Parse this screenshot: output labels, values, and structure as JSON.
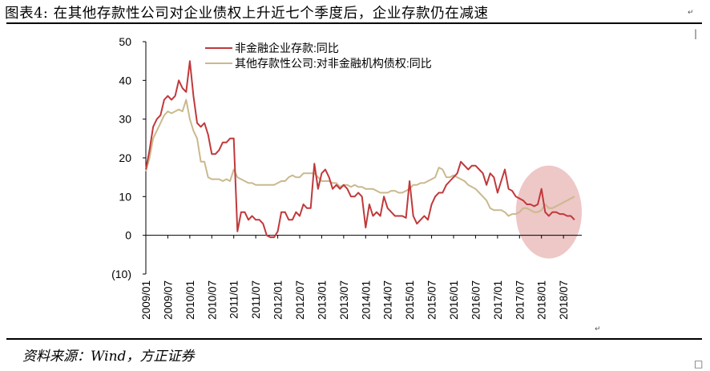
{
  "title": "图表4:  在其他存款性公司对企业债权上升近七个季度后，企业存款仍在减速",
  "source": "资料来源：Wind，方正证券",
  "chart_data": {
    "type": "line",
    "title": "",
    "xlabel": "",
    "ylabel": "",
    "ylim": [
      -10,
      50
    ],
    "y_ticks": [
      "(10)",
      "0",
      "10",
      "20",
      "30",
      "40",
      "50"
    ],
    "y_tick_values": [
      -10,
      0,
      10,
      20,
      30,
      40,
      50
    ],
    "x_ticks": [
      "2009/01",
      "2009/07",
      "2010/01",
      "2010/07",
      "2011/01",
      "2011/07",
      "2012/01",
      "2012/07",
      "2013/01",
      "2013/07",
      "2014/01",
      "2014/07",
      "2015/01",
      "2015/07",
      "2016/01",
      "2016/07",
      "2017/01",
      "2017/07",
      "2018/01",
      "2018/07"
    ],
    "grid": false,
    "legend_position": "top",
    "highlight": {
      "shape": "ellipse",
      "color": "#e8b4b4",
      "x_range": [
        "2017/06",
        "2018/12"
      ],
      "y_range": [
        -6,
        18
      ]
    },
    "series": [
      {
        "name": "非金融企业存款:同比",
        "color": "#c0393b",
        "x": [
          "2009/01",
          "2009/02",
          "2009/03",
          "2009/04",
          "2009/05",
          "2009/06",
          "2009/07",
          "2009/08",
          "2009/09",
          "2009/10",
          "2009/11",
          "2009/12",
          "2010/01",
          "2010/02",
          "2010/03",
          "2010/04",
          "2010/05",
          "2010/06",
          "2010/07",
          "2010/08",
          "2010/09",
          "2010/10",
          "2010/11",
          "2010/12",
          "2011/01",
          "2011/02",
          "2011/03",
          "2011/04",
          "2011/05",
          "2011/06",
          "2011/07",
          "2011/08",
          "2011/09",
          "2011/10",
          "2011/11",
          "2011/12",
          "2012/01",
          "2012/02",
          "2012/03",
          "2012/04",
          "2012/05",
          "2012/06",
          "2012/07",
          "2012/08",
          "2012/09",
          "2012/10",
          "2012/11",
          "2012/12",
          "2013/01",
          "2013/02",
          "2013/03",
          "2013/04",
          "2013/05",
          "2013/06",
          "2013/07",
          "2013/08",
          "2013/09",
          "2013/10",
          "2013/11",
          "2013/12",
          "2014/01",
          "2014/02",
          "2014/03",
          "2014/04",
          "2014/05",
          "2014/06",
          "2014/07",
          "2014/08",
          "2014/09",
          "2014/10",
          "2014/11",
          "2014/12",
          "2015/01",
          "2015/02",
          "2015/03",
          "2015/04",
          "2015/05",
          "2015/06",
          "2015/07",
          "2015/08",
          "2015/09",
          "2015/10",
          "2015/11",
          "2015/12",
          "2016/01",
          "2016/02",
          "2016/03",
          "2016/04",
          "2016/05",
          "2016/06",
          "2016/07",
          "2016/08",
          "2016/09",
          "2016/10",
          "2016/11",
          "2016/12",
          "2017/01",
          "2017/02",
          "2017/03",
          "2017/04",
          "2017/05",
          "2017/06",
          "2017/07",
          "2017/08",
          "2017/09",
          "2017/10",
          "2017/11",
          "2017/12",
          "2018/01",
          "2018/02",
          "2018/03",
          "2018/04",
          "2018/05",
          "2018/06",
          "2018/07",
          "2018/08",
          "2018/09",
          "2018/10"
        ],
        "values": [
          17,
          22,
          28,
          30,
          31,
          35,
          36,
          35,
          36,
          40,
          38,
          37,
          45,
          36,
          29,
          28,
          29,
          26,
          21,
          21,
          22,
          24,
          24,
          25,
          25,
          1,
          6,
          6,
          4,
          5,
          4,
          4,
          3,
          0,
          -0.5,
          -0.5,
          1,
          6,
          6,
          4,
          4,
          6,
          5,
          8,
          7,
          7,
          18.5,
          12,
          16,
          17,
          15,
          12,
          13,
          12,
          13,
          12,
          10,
          10,
          11,
          10,
          2,
          8,
          5,
          6,
          5,
          10,
          7,
          6,
          5,
          5,
          5,
          4.5,
          14,
          5,
          3,
          4,
          5,
          4,
          8,
          10,
          11,
          11,
          13,
          14,
          15,
          16,
          19,
          18,
          17,
          18,
          18,
          17,
          16,
          13,
          16,
          15,
          11,
          14,
          17,
          12,
          11.5,
          10,
          9.5,
          9,
          8,
          8,
          7.5,
          8,
          12,
          6,
          5,
          6,
          6,
          5.5,
          5.5,
          5,
          5,
          4
        ]
      },
      {
        "name": "其他存款性公司:对非金融机构债权:同比",
        "color": "#c9b98d",
        "x": [
          "2009/01",
          "2009/02",
          "2009/03",
          "2009/04",
          "2009/05",
          "2009/06",
          "2009/07",
          "2009/08",
          "2009/09",
          "2009/10",
          "2009/11",
          "2009/12",
          "2010/01",
          "2010/02",
          "2010/03",
          "2010/04",
          "2010/05",
          "2010/06",
          "2010/07",
          "2010/08",
          "2010/09",
          "2010/10",
          "2010/11",
          "2010/12",
          "2011/01",
          "2011/02",
          "2011/03",
          "2011/04",
          "2011/05",
          "2011/06",
          "2011/07",
          "2011/08",
          "2011/09",
          "2011/10",
          "2011/11",
          "2011/12",
          "2012/01",
          "2012/02",
          "2012/03",
          "2012/04",
          "2012/05",
          "2012/06",
          "2012/07",
          "2012/08",
          "2012/09",
          "2012/10",
          "2012/11",
          "2012/12",
          "2013/01",
          "2013/02",
          "2013/03",
          "2013/04",
          "2013/05",
          "2013/06",
          "2013/07",
          "2013/08",
          "2013/09",
          "2013/10",
          "2013/11",
          "2013/12",
          "2014/01",
          "2014/02",
          "2014/03",
          "2014/04",
          "2014/05",
          "2014/06",
          "2014/07",
          "2014/08",
          "2014/09",
          "2014/10",
          "2014/11",
          "2014/12",
          "2015/01",
          "2015/02",
          "2015/03",
          "2015/04",
          "2015/05",
          "2015/06",
          "2015/07",
          "2015/08",
          "2015/09",
          "2015/10",
          "2015/11",
          "2015/12",
          "2016/01",
          "2016/02",
          "2016/03",
          "2016/04",
          "2016/05",
          "2016/06",
          "2016/07",
          "2016/08",
          "2016/09",
          "2016/10",
          "2016/11",
          "2016/12",
          "2017/01",
          "2017/02",
          "2017/03",
          "2017/04",
          "2017/05",
          "2017/06",
          "2017/07",
          "2017/08",
          "2017/09",
          "2017/10",
          "2017/11",
          "2017/12",
          "2018/01",
          "2018/02",
          "2018/03",
          "2018/04",
          "2018/05",
          "2018/06",
          "2018/07",
          "2018/08",
          "2018/09",
          "2018/10"
        ],
        "values": [
          16.5,
          20,
          25,
          27,
          29,
          31,
          32,
          31.5,
          32,
          32.5,
          32,
          35,
          30,
          27,
          25,
          19,
          19,
          15,
          14.5,
          14.5,
          14.5,
          14,
          14.5,
          14,
          17,
          15,
          14.5,
          14,
          13.5,
          13.5,
          13,
          13,
          13,
          13,
          13,
          13,
          13.5,
          14,
          14,
          15,
          15.5,
          15,
          15,
          16,
          16,
          16,
          16,
          15,
          14,
          14,
          14,
          13.5,
          13.5,
          12.5,
          13,
          13,
          12.5,
          13,
          12.5,
          12.5,
          12,
          12,
          12,
          11.5,
          11,
          11,
          11,
          11.5,
          11.5,
          11,
          11,
          11.5,
          12,
          13,
          13,
          13.5,
          13.5,
          14,
          14.5,
          15,
          17.5,
          17,
          15,
          15,
          15.5,
          15,
          14.5,
          14,
          13,
          12.5,
          12,
          11,
          10,
          9,
          7,
          6.5,
          6.5,
          6.5,
          6,
          5,
          5.5,
          5.5,
          6,
          7,
          7,
          6.5,
          6,
          6,
          6.5,
          8,
          7,
          7,
          7.5,
          8,
          8.5,
          9,
          9.5,
          10
        ]
      }
    ]
  }
}
